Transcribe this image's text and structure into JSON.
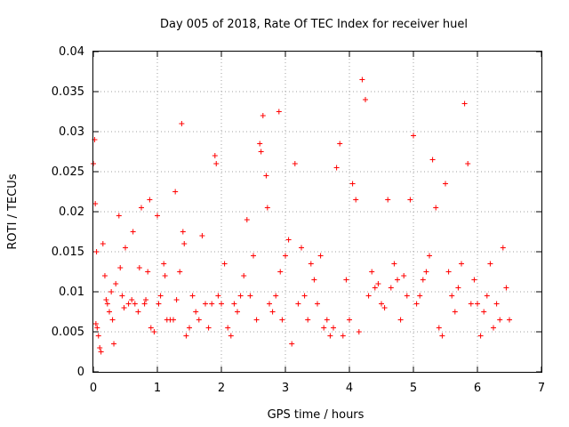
{
  "chart_data": {
    "type": "scatter",
    "title": "Day 005 of 2018, Rate Of TEC Index for receiver huel",
    "xlabel": "GPS time / hours",
    "ylabel": "ROTI / TECUs",
    "xlim": [
      0,
      7
    ],
    "ylim": [
      0,
      0.04
    ],
    "x_ticks": [
      "0",
      "1",
      "2",
      "3",
      "4",
      "5",
      "6",
      "7"
    ],
    "y_ticks": [
      "0",
      "0.005",
      "0.01",
      "0.015",
      "0.02",
      "0.025",
      "0.03",
      "0.035",
      "0.04"
    ],
    "grid": true,
    "legend": "none",
    "marker": "plus",
    "color": "#ff0000",
    "series": [
      {
        "x": [
          0.0,
          0.02,
          0.03,
          0.04,
          0.05,
          0.06,
          0.08,
          0.1,
          0.12,
          0.15,
          0.18,
          0.2,
          0.22,
          0.25,
          0.28,
          0.3,
          0.32,
          0.35,
          0.4,
          0.42,
          0.45,
          0.48,
          0.5,
          0.55,
          0.6,
          0.62,
          0.65,
          0.7,
          0.72,
          0.75,
          0.8,
          0.82,
          0.85,
          0.88,
          0.9,
          0.95,
          1.0,
          1.02,
          1.05,
          1.1,
          1.12,
          1.15,
          1.2,
          1.25,
          1.28,
          1.3,
          1.35,
          1.38,
          1.4,
          1.42,
          1.45,
          1.5,
          1.55,
          1.6,
          1.65,
          1.7,
          1.75,
          1.8,
          1.85,
          1.9,
          1.92,
          1.95,
          2.0,
          2.05,
          2.1,
          2.15,
          2.2,
          2.25,
          2.3,
          2.35,
          2.4,
          2.45,
          2.5,
          2.55,
          2.6,
          2.62,
          2.65,
          2.7,
          2.72,
          2.75,
          2.8,
          2.85,
          2.9,
          2.92,
          2.95,
          3.0,
          3.05,
          3.1,
          3.15,
          3.2,
          3.25,
          3.3,
          3.35,
          3.4,
          3.45,
          3.5,
          3.55,
          3.6,
          3.65,
          3.7,
          3.75,
          3.8,
          3.85,
          3.9,
          3.95,
          4.0,
          4.05,
          4.1,
          4.15,
          4.2,
          4.25,
          4.3,
          4.35,
          4.4,
          4.45,
          4.5,
          4.55,
          4.6,
          4.65,
          4.7,
          4.75,
          4.8,
          4.85,
          4.9,
          4.95,
          5.0,
          5.05,
          5.1,
          5.15,
          5.2,
          5.25,
          5.3,
          5.35,
          5.4,
          5.45,
          5.5,
          5.55,
          5.6,
          5.65,
          5.7,
          5.75,
          5.8,
          5.85,
          5.9,
          5.95,
          6.0,
          6.05,
          6.1,
          6.15,
          6.2,
          6.25,
          6.3,
          6.35,
          6.4,
          6.45,
          6.5
        ],
        "y": [
          0.026,
          0.029,
          0.021,
          0.006,
          0.015,
          0.0055,
          0.0045,
          0.003,
          0.0025,
          0.016,
          0.012,
          0.009,
          0.0085,
          0.0075,
          0.01,
          0.0065,
          0.0035,
          0.011,
          0.0195,
          0.013,
          0.0095,
          0.008,
          0.0155,
          0.0085,
          0.009,
          0.0175,
          0.0085,
          0.0075,
          0.013,
          0.0205,
          0.0085,
          0.009,
          0.0125,
          0.0215,
          0.0055,
          0.005,
          0.0195,
          0.0085,
          0.0095,
          0.0135,
          0.012,
          0.0065,
          0.0065,
          0.0065,
          0.0225,
          0.009,
          0.0125,
          0.031,
          0.0175,
          0.016,
          0.0045,
          0.0055,
          0.0095,
          0.0075,
          0.0065,
          0.017,
          0.0085,
          0.0055,
          0.0085,
          0.027,
          0.026,
          0.0095,
          0.0085,
          0.0135,
          0.0055,
          0.0045,
          0.0085,
          0.0075,
          0.0095,
          0.012,
          0.019,
          0.0095,
          0.0145,
          0.0065,
          0.0285,
          0.0275,
          0.032,
          0.0245,
          0.0205,
          0.0085,
          0.0075,
          0.0095,
          0.0325,
          0.0125,
          0.0065,
          0.0145,
          0.0165,
          0.0035,
          0.026,
          0.0085,
          0.0155,
          0.0095,
          0.0065,
          0.0135,
          0.0115,
          0.0085,
          0.0145,
          0.0055,
          0.0065,
          0.0045,
          0.0055,
          0.0255,
          0.0285,
          0.0045,
          0.0115,
          0.0065,
          0.0235,
          0.0215,
          0.005,
          0.0365,
          0.034,
          0.0095,
          0.0125,
          0.0105,
          0.011,
          0.0085,
          0.008,
          0.0215,
          0.0105,
          0.0135,
          0.0115,
          0.0065,
          0.012,
          0.0095,
          0.0215,
          0.0295,
          0.0085,
          0.0095,
          0.0115,
          0.0125,
          0.0145,
          0.0265,
          0.0205,
          0.0055,
          0.0045,
          0.0235,
          0.0125,
          0.0095,
          0.0075,
          0.0105,
          0.0135,
          0.0335,
          0.026,
          0.0085,
          0.0115,
          0.0085,
          0.0045,
          0.0075,
          0.0095,
          0.0135,
          0.0055,
          0.0085,
          0.0065,
          0.0155,
          0.0105,
          0.0065
        ]
      }
    ]
  }
}
